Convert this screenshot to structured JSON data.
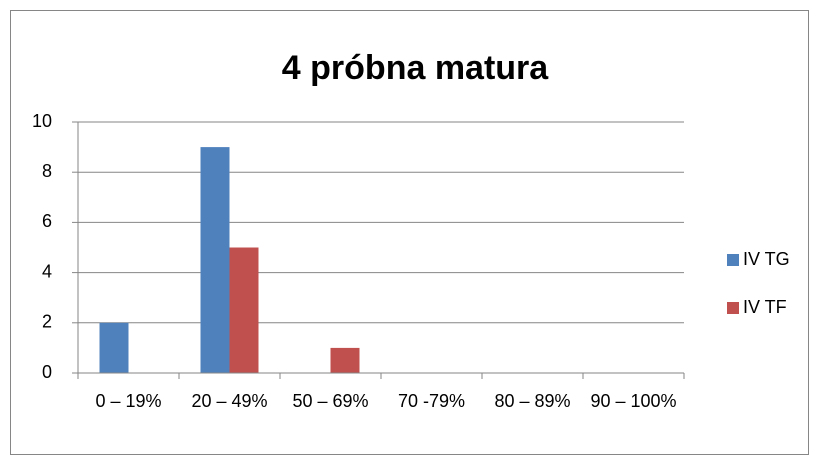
{
  "chart_data": {
    "type": "bar",
    "title": "4 próbna matura",
    "categories": [
      "0 – 19%",
      "20 – 49%",
      "50 – 69%",
      "70 -79%",
      "80 – 89%",
      "90 – 100%"
    ],
    "series": [
      {
        "name": "IV TG",
        "color": "#4f81bd",
        "values": [
          2,
          9,
          0,
          0,
          0,
          0
        ]
      },
      {
        "name": "IV TF",
        "color": "#c0504d",
        "values": [
          0,
          5,
          1,
          0,
          0,
          0
        ]
      }
    ],
    "ylim": [
      0,
      10
    ],
    "yticks": [
      0,
      2,
      4,
      6,
      8,
      10
    ],
    "grid": true,
    "legend": "right"
  }
}
